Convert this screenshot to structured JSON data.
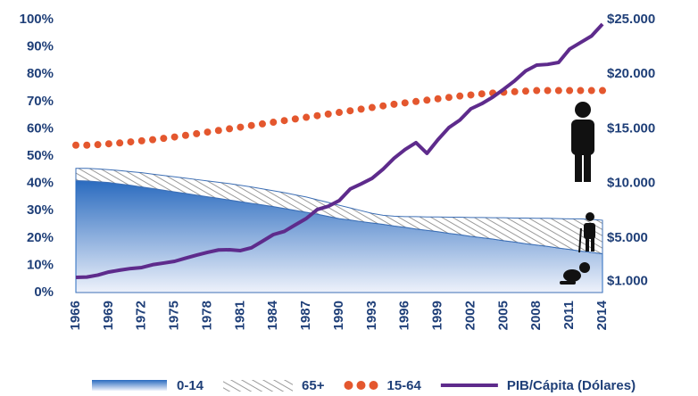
{
  "chart_data": {
    "type": "combo",
    "x": [
      1966,
      1967,
      1968,
      1969,
      1970,
      1971,
      1972,
      1973,
      1974,
      1975,
      1976,
      1977,
      1978,
      1979,
      1980,
      1981,
      1982,
      1983,
      1984,
      1985,
      1986,
      1987,
      1988,
      1989,
      1990,
      1991,
      1992,
      1993,
      1994,
      1995,
      1996,
      1997,
      1998,
      1999,
      2000,
      2001,
      2002,
      2003,
      2004,
      2005,
      2006,
      2007,
      2008,
      2009,
      2010,
      2011,
      2012,
      2013,
      2014
    ],
    "xlim": [
      1966,
      2014
    ],
    "xticks": [
      1966,
      1969,
      1972,
      1975,
      1978,
      1981,
      1984,
      1987,
      1990,
      1993,
      1996,
      1999,
      2002,
      2005,
      2008,
      2011,
      2014
    ],
    "ylim": [
      0,
      100
    ],
    "yticks": [
      {
        "value": 0,
        "label": "0%"
      },
      {
        "value": 10,
        "label": "10%"
      },
      {
        "value": 20,
        "label": "20%"
      },
      {
        "value": 30,
        "label": "30%"
      },
      {
        "value": 40,
        "label": "40%"
      },
      {
        "value": 50,
        "label": "50%"
      },
      {
        "value": 60,
        "label": "60%"
      },
      {
        "value": 70,
        "label": "70%"
      },
      {
        "value": 80,
        "label": "80%"
      },
      {
        "value": 90,
        "label": "90%"
      },
      {
        "value": 100,
        "label": "100%"
      }
    ],
    "y2lim": [
      0,
      25000
    ],
    "y2ticks": [
      {
        "value": 1000,
        "label": "$1.000"
      },
      {
        "value": 5000,
        "label": "$5.000"
      },
      {
        "value": 10000,
        "label": "$10.000"
      },
      {
        "value": 15000,
        "label": "$15.000"
      },
      {
        "value": 20000,
        "label": "$20.000"
      },
      {
        "value": 25000,
        "label": "$25.000"
      }
    ],
    "series": [
      {
        "name": "0-14",
        "style": "area",
        "color": "#2a6bbf",
        "values": [
          41,
          40.9,
          40.6,
          40.3,
          39.8,
          39.3,
          38.7,
          38.1,
          37.5,
          36.9,
          36.3,
          35.7,
          35.1,
          34.5,
          33.9,
          33.3,
          32.7,
          32.1,
          31.5,
          30.8,
          30.1,
          29.4,
          28.7,
          27.9,
          27.1,
          26.6,
          26,
          25.5,
          25,
          24.4,
          23.9,
          23.3,
          22.8,
          22.3,
          21.7,
          21.2,
          20.6,
          20.1,
          19.6,
          19,
          18.5,
          17.9,
          17.4,
          16.9,
          16.3,
          15.8,
          15.2,
          14.7,
          14.2
        ]
      },
      {
        "name": "65+",
        "style": "hatch",
        "color": "#9a9a9a",
        "values": [
          4.5,
          4.6,
          4.7,
          4.7,
          4.9,
          5,
          5.2,
          5.3,
          5.4,
          5.5,
          5.6,
          5.7,
          5.8,
          5.9,
          6,
          6,
          6,
          5.9,
          5.8,
          5.8,
          5.7,
          5.6,
          5.3,
          5.1,
          4.9,
          4.4,
          4,
          3.5,
          3.3,
          3.6,
          3.9,
          4.5,
          4.9,
          5.4,
          5.9,
          6.4,
          6.9,
          7.4,
          7.8,
          8.4,
          8.8,
          9.4,
          9.8,
          10.3,
          10.8,
          11.2,
          11.8,
          12.1,
          12.3
        ]
      },
      {
        "name": "15-64",
        "style": "dots",
        "color": "#e4572e",
        "values": [
          54,
          54,
          54.2,
          54.5,
          54.8,
          55.2,
          55.6,
          56,
          56.5,
          57,
          57.6,
          58.2,
          58.8,
          59.4,
          60,
          60.6,
          61.2,
          61.8,
          62.4,
          63,
          63.6,
          64.2,
          64.8,
          65.4,
          66,
          66.6,
          67.2,
          67.8,
          68.4,
          69,
          69.5,
          70,
          70.5,
          71,
          71.5,
          72,
          72.4,
          72.8,
          73.1,
          73.4,
          73.6,
          73.8,
          74,
          74,
          74,
          74,
          74,
          74,
          74
        ]
      },
      {
        "name": "PIB/Cápita (Dólares)",
        "style": "line",
        "axis": "y2",
        "color": "#5e2b8c",
        "values": [
          1390,
          1420,
          1600,
          1880,
          2050,
          2200,
          2290,
          2550,
          2700,
          2860,
          3150,
          3430,
          3680,
          3900,
          3920,
          3840,
          4100,
          4700,
          5310,
          5600,
          6200,
          6780,
          7600,
          7900,
          8420,
          9480,
          9950,
          10460,
          11300,
          12300,
          13100,
          13730,
          12750,
          14000,
          15110,
          15800,
          16830,
          17300,
          17900,
          18630,
          19400,
          20300,
          20830,
          20900,
          21080,
          22300,
          22900,
          23500,
          24590
        ]
      }
    ]
  }
}
